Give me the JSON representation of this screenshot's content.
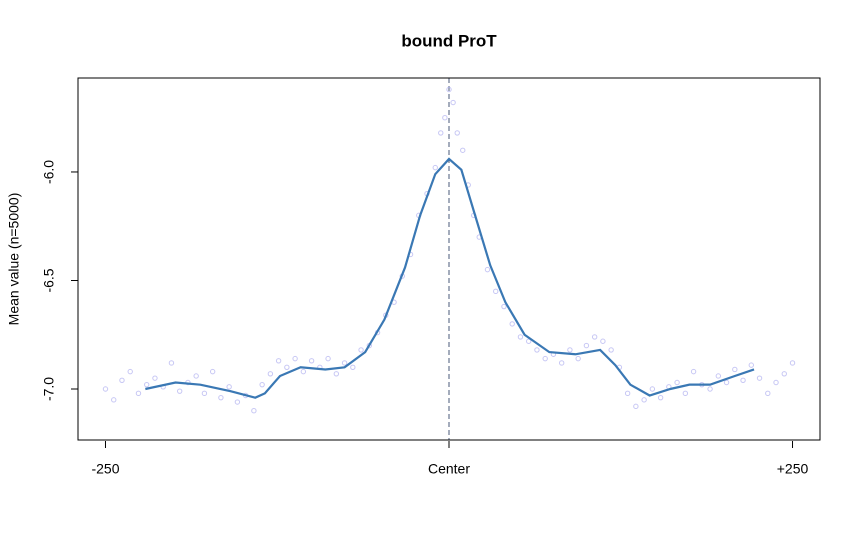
{
  "chart_data": {
    "type": "line",
    "title": "bound ProT",
    "ylabel": "Mean value (n=5000)",
    "xlim": [
      -270,
      270
    ],
    "ylim": [
      -7.235,
      -5.567
    ],
    "xticks": [
      -250,
      {
        "value": 0,
        "label": "Center"
      },
      {
        "value": 250,
        "label": "+250"
      }
    ],
    "yticks": [
      {
        "value": -7,
        "label": "-7.0"
      },
      {
        "value": -6.5,
        "label": "-6.5"
      },
      {
        "value": -6,
        "label": "-6.0"
      }
    ],
    "vline": 0,
    "vline_color": "#4a5a7a",
    "series": [
      {
        "type": "scatter",
        "color": "#b4b4f0",
        "x": [
          -250,
          -244,
          -238,
          -232,
          -226,
          -220,
          -214,
          -208,
          -202,
          -196,
          -190,
          -184,
          -178,
          -172,
          -166,
          -160,
          -154,
          -148,
          -142,
          -136,
          -130,
          -124,
          -118,
          -112,
          -106,
          -100,
          -94,
          -88,
          -82,
          -76,
          -70,
          -64,
          -58,
          -52,
          -46,
          -40,
          -34,
          -28,
          -22,
          -16,
          -10,
          -6,
          -3,
          0,
          3,
          6,
          10,
          14,
          18,
          22,
          28,
          34,
          40,
          46,
          52,
          58,
          64,
          70,
          76,
          82,
          88,
          94,
          100,
          106,
          112,
          118,
          124,
          130,
          136,
          142,
          148,
          154,
          160,
          166,
          172,
          178,
          184,
          190,
          196,
          202,
          208,
          214,
          220,
          226,
          232,
          238,
          244,
          250
        ],
        "values": [
          -7.0,
          -7.05,
          -6.96,
          -6.92,
          -7.02,
          -6.98,
          -6.95,
          -6.99,
          -6.88,
          -7.01,
          -6.97,
          -6.94,
          -7.02,
          -6.92,
          -7.04,
          -6.99,
          -7.06,
          -7.03,
          -7.1,
          -6.98,
          -6.93,
          -6.87,
          -6.9,
          -6.86,
          -6.92,
          -6.87,
          -6.9,
          -6.86,
          -6.93,
          -6.88,
          -6.9,
          -6.82,
          -6.8,
          -6.74,
          -6.66,
          -6.6,
          -6.48,
          -6.38,
          -6.2,
          -6.1,
          -5.98,
          -5.82,
          -5.75,
          -5.62,
          -5.68,
          -5.82,
          -5.9,
          -6.06,
          -6.2,
          -6.3,
          -6.45,
          -6.55,
          -6.62,
          -6.7,
          -6.76,
          -6.78,
          -6.82,
          -6.86,
          -6.84,
          -6.88,
          -6.82,
          -6.86,
          -6.8,
          -6.76,
          -6.78,
          -6.82,
          -6.9,
          -7.02,
          -7.08,
          -7.05,
          -7.0,
          -7.04,
          -6.99,
          -6.97,
          -7.02,
          -6.92,
          -6.98,
          -7.0,
          -6.94,
          -6.97,
          -6.91,
          -6.96,
          -6.89,
          -6.95,
          -7.02,
          -6.97,
          -6.93,
          -6.88
        ]
      },
      {
        "type": "line",
        "color": "#3a78b4",
        "x": [
          -221,
          -199,
          -181,
          -159,
          -141,
          -134,
          -123,
          -108,
          -90,
          -76,
          -61,
          -47,
          -32,
          -21,
          -10,
          0,
          9,
          19,
          30,
          41,
          55,
          73,
          92,
          110,
          121,
          132,
          146,
          161,
          175,
          190,
          208,
          222
        ],
        "values": [
          -7.0,
          -6.97,
          -6.98,
          -7.01,
          -7.04,
          -7.02,
          -6.94,
          -6.9,
          -6.91,
          -6.9,
          -6.83,
          -6.68,
          -6.44,
          -6.2,
          -6.01,
          -5.94,
          -5.99,
          -6.2,
          -6.43,
          -6.6,
          -6.75,
          -6.83,
          -6.84,
          -6.82,
          -6.89,
          -6.98,
          -7.03,
          -7.0,
          -6.98,
          -6.98,
          -6.94,
          -6.91
        ]
      }
    ]
  }
}
